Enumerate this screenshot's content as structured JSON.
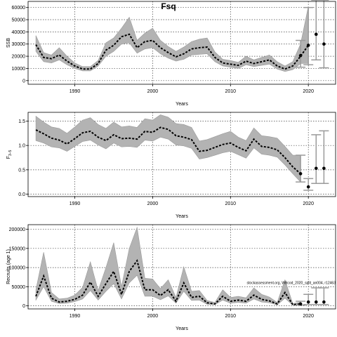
{
  "title": "Fsq",
  "watermark": "stockassessment.org, WBcod_2020_split_an004, r12463",
  "chart_data": [
    {
      "type": "line",
      "name": "ssb",
      "ylabel": "SSB",
      "xlabel": "Years",
      "xlim": [
        1984,
        2023.5
      ],
      "ylim": [
        -3000,
        65000
      ],
      "xticks": [
        1990,
        2000,
        2010,
        2020
      ],
      "yticks": [
        0,
        10000,
        20000,
        30000,
        40000,
        50000,
        60000
      ],
      "ytick_labels": [
        "0",
        "10000",
        "20000",
        "30000",
        "40000",
        "50000",
        "60000"
      ],
      "grid": true,
      "x": [
        1985,
        1986,
        1987,
        1988,
        1989,
        1990,
        1991,
        1992,
        1993,
        1994,
        1995,
        1996,
        1997,
        1998,
        1999,
        2000,
        2001,
        2002,
        2003,
        2004,
        2005,
        2006,
        2007,
        2008,
        2009,
        2010,
        2011,
        2012,
        2013,
        2014,
        2015,
        2016,
        2017,
        2018,
        2019,
        2020
      ],
      "estimate": [
        29500,
        19000,
        18000,
        21000,
        16000,
        12000,
        9500,
        9500,
        14000,
        25000,
        29000,
        36000,
        38000,
        27000,
        32000,
        33000,
        27000,
        23000,
        19500,
        22000,
        26000,
        27000,
        27500,
        19000,
        14500,
        13500,
        12500,
        16000,
        14000,
        15500,
        17000,
        12000,
        9500,
        12000,
        20000,
        29000
      ],
      "lower": [
        24000,
        15500,
        14500,
        17000,
        13000,
        10000,
        8000,
        8000,
        12000,
        20000,
        24000,
        30000,
        31000,
        22500,
        26000,
        27000,
        22000,
        18500,
        16000,
        17500,
        21000,
        21500,
        22000,
        15500,
        12000,
        11000,
        10000,
        13000,
        11500,
        12500,
        13500,
        9500,
        7500,
        9000,
        14000,
        14000
      ],
      "upper": [
        37000,
        23000,
        21000,
        27000,
        20000,
        14500,
        11500,
        11500,
        16500,
        31000,
        35000,
        43000,
        52000,
        33000,
        39000,
        43000,
        33000,
        28000,
        24000,
        27500,
        32000,
        34000,
        35000,
        23500,
        17500,
        16500,
        15000,
        20000,
        17000,
        19000,
        21000,
        15500,
        12000,
        15500,
        30000,
        61000
      ],
      "forecast": [
        {
          "year": 2019,
          "median": 20500,
          "low": 11000,
          "high": 33000
        },
        {
          "year": 2020,
          "median": 29000,
          "low": 13000,
          "high": 60000
        },
        {
          "year": 2021,
          "median": 38000,
          "low": 17000,
          "high": 66000
        },
        {
          "year": 2022,
          "median": 30000,
          "low": 10500,
          "high": 66000
        }
      ]
    },
    {
      "type": "line",
      "name": "fbar",
      "ylabel": "F3-5",
      "ylabel_main": "F",
      "ylabel_sub": "3–5",
      "xlabel": "Years",
      "xlim": [
        1984,
        2023.5
      ],
      "ylim": [
        -0.05,
        1.68
      ],
      "xticks": [
        1990,
        2000,
        2010,
        2020
      ],
      "yticks": [
        0.0,
        0.5,
        1.0,
        1.5
      ],
      "ytick_labels": [
        "0.0",
        "0.5",
        "1.0",
        "1.5"
      ],
      "grid": true,
      "x": [
        1985,
        1986,
        1987,
        1988,
        1989,
        1990,
        1991,
        1992,
        1993,
        1994,
        1995,
        1996,
        1997,
        1998,
        1999,
        2000,
        2001,
        2002,
        2003,
        2004,
        2005,
        2006,
        2007,
        2008,
        2009,
        2010,
        2011,
        2012,
        2013,
        2014,
        2015,
        2016,
        2017,
        2018,
        2019
      ],
      "estimate": [
        1.32,
        1.24,
        1.15,
        1.11,
        1.03,
        1.14,
        1.26,
        1.29,
        1.17,
        1.1,
        1.22,
        1.14,
        1.15,
        1.13,
        1.29,
        1.27,
        1.37,
        1.33,
        1.2,
        1.17,
        1.12,
        0.88,
        0.9,
        0.96,
        1.02,
        1.05,
        0.96,
        0.89,
        1.13,
        0.98,
        0.96,
        0.91,
        0.75,
        0.56,
        0.42
      ],
      "lower": [
        1.1,
        1.05,
        0.97,
        0.95,
        0.88,
        0.98,
        1.08,
        1.11,
        1.01,
        0.93,
        1.05,
        0.97,
        0.98,
        0.96,
        1.11,
        1.09,
        1.17,
        1.13,
        1.01,
        0.99,
        0.94,
        0.72,
        0.75,
        0.8,
        0.85,
        0.88,
        0.81,
        0.74,
        0.95,
        0.82,
        0.8,
        0.76,
        0.6,
        0.42,
        0.25
      ],
      "upper": [
        1.6,
        1.48,
        1.38,
        1.35,
        1.25,
        1.38,
        1.52,
        1.57,
        1.43,
        1.35,
        1.48,
        1.38,
        1.4,
        1.37,
        1.55,
        1.52,
        1.63,
        1.58,
        1.45,
        1.43,
        1.37,
        1.09,
        1.12,
        1.18,
        1.24,
        1.29,
        1.17,
        1.1,
        1.36,
        1.2,
        1.18,
        1.15,
        0.98,
        0.8,
        0.8
      ],
      "forecast": [
        {
          "year": 2019,
          "median": 0.42,
          "low": 0.25,
          "high": 0.8
        },
        {
          "year": 2020,
          "median": 0.15,
          "low": 0.08,
          "high": 0.32
        },
        {
          "year": 2021,
          "median": 0.53,
          "low": 0.22,
          "high": 1.22
        },
        {
          "year": 2022,
          "median": 0.53,
          "low": 0.22,
          "high": 1.3
        }
      ]
    },
    {
      "type": "line",
      "name": "recruitment",
      "ylabel": "Recruits (age 1)",
      "xlabel": "Years",
      "xlim": [
        1984,
        2023.5
      ],
      "ylim": [
        -8000,
        212000
      ],
      "xticks": [
        1990,
        2000,
        2010,
        2020
      ],
      "yticks": [
        0,
        50000,
        100000,
        150000,
        200000
      ],
      "ytick_labels": [
        "0",
        "50000",
        "100000",
        "150000",
        "200000"
      ],
      "grid": true,
      "x": [
        1985,
        1986,
        1987,
        1988,
        1989,
        1990,
        1991,
        1992,
        1993,
        1994,
        1995,
        1996,
        1997,
        1998,
        1999,
        2000,
        2001,
        2002,
        2003,
        2004,
        2005,
        2006,
        2007,
        2008,
        2009,
        2010,
        2011,
        2012,
        2013,
        2014,
        2015,
        2016,
        2017,
        2018,
        2019
      ],
      "estimate": [
        25000,
        78000,
        20000,
        10000,
        12000,
        17000,
        28000,
        62000,
        25000,
        58000,
        90000,
        30000,
        90000,
        118000,
        42000,
        42000,
        27000,
        42000,
        12000,
        60000,
        22000,
        25000,
        8000,
        5000,
        25000,
        12000,
        15000,
        12000,
        28000,
        17000,
        13000,
        5000,
        35000,
        3000,
        5000
      ],
      "lower": [
        15000,
        50000,
        12000,
        6000,
        7000,
        11000,
        18000,
        40000,
        15000,
        38000,
        58000,
        18000,
        60000,
        80000,
        25000,
        25000,
        16000,
        26000,
        7000,
        38000,
        14000,
        15000,
        4000,
        3000,
        15000,
        7000,
        9000,
        7000,
        18000,
        10000,
        8000,
        2500,
        20000,
        1500,
        2500
      ],
      "upper": [
        42000,
        140000,
        35000,
        18000,
        20000,
        28000,
        48000,
        115000,
        40000,
        100000,
        165000,
        50000,
        150000,
        205000,
        72000,
        70000,
        45000,
        68000,
        22000,
        102000,
        38000,
        40000,
        14000,
        9000,
        42000,
        22000,
        25000,
        21000,
        47000,
        30000,
        23000,
        9000,
        68000,
        6000,
        10000
      ],
      "forecast": [
        {
          "year": 2019,
          "median": 5000,
          "low": 2000,
          "high": 12000
        },
        {
          "year": 2020,
          "median": 10000,
          "low": 3500,
          "high": 30000
        },
        {
          "year": 2021,
          "median": 10000,
          "low": 3500,
          "high": 47000
        },
        {
          "year": 2022,
          "median": 10000,
          "low": 3500,
          "high": 47000
        }
      ]
    }
  ]
}
